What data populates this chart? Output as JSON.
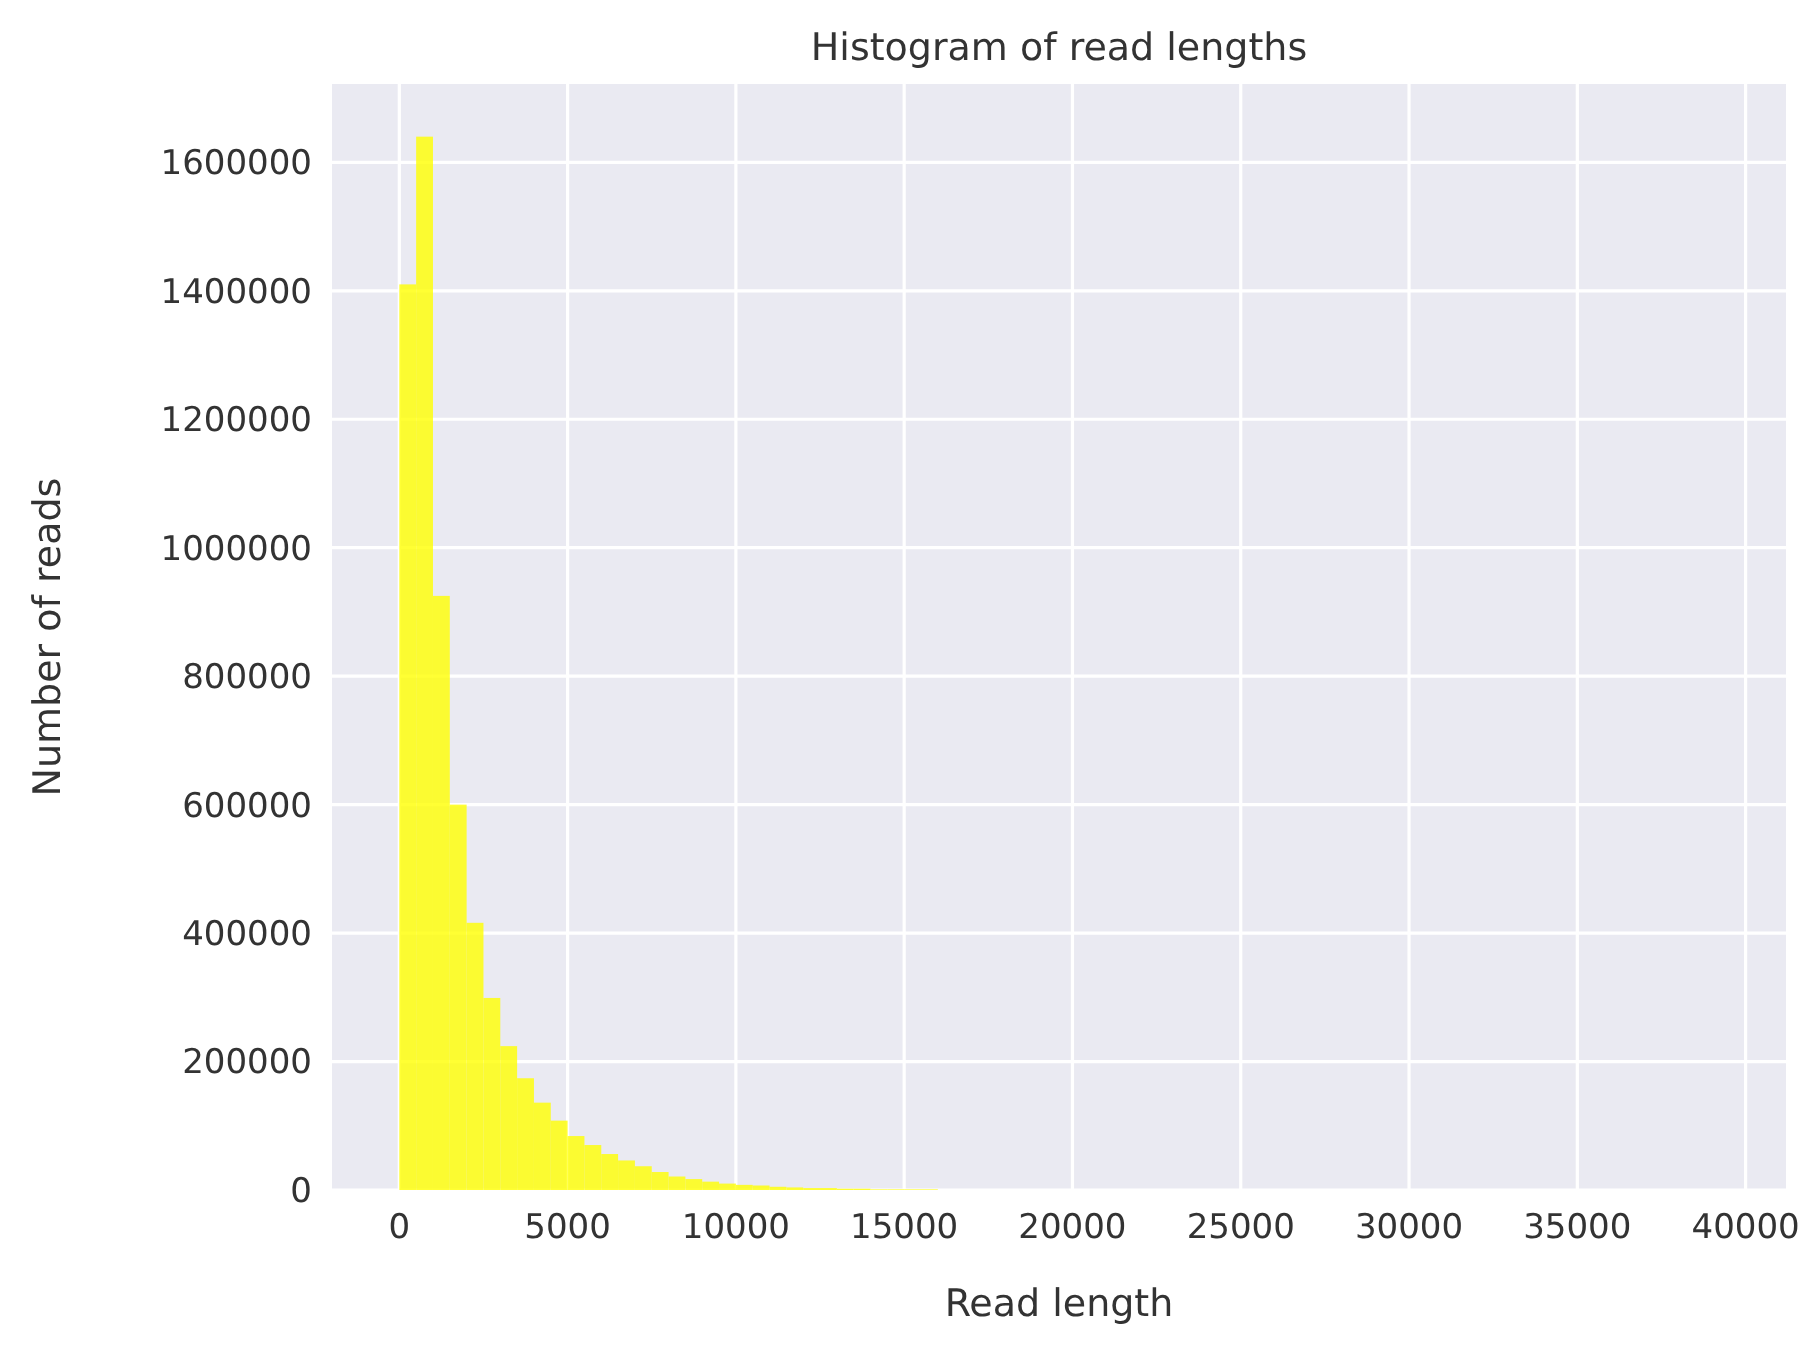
{
  "chart_data": {
    "type": "histogram",
    "title": "Histogram of read lengths",
    "xlabel": "Read length",
    "ylabel": "Number of reads",
    "bins": [
      0,
      500,
      1000,
      1500,
      2000,
      2500,
      3000,
      3500,
      4000,
      4500,
      5000,
      5500,
      6000,
      6500,
      7000,
      7500,
      8000,
      8500,
      9000,
      9500,
      10000,
      10500,
      11000,
      11500,
      12000,
      12500,
      13000,
      13500,
      14000,
      14500,
      15000,
      15500,
      16000
    ],
    "values": [
      1410000,
      1640000,
      925000,
      600000,
      416000,
      299000,
      224000,
      174000,
      136000,
      108000,
      84000,
      70000,
      56000,
      46000,
      37000,
      28000,
      21000,
      17000,
      13000,
      10000,
      8000,
      7000,
      5000,
      4000,
      3000,
      3000,
      2000,
      2000,
      1000,
      1000,
      1000,
      1000
    ],
    "color": "#ffff00",
    "xlim": [
      -2000,
      41200
    ],
    "xticks": [
      0,
      5000,
      10000,
      15000,
      20000,
      25000,
      30000,
      35000,
      40000
    ],
    "ylim": [
      0,
      1722000
    ],
    "yticks": [
      0,
      200000,
      400000,
      600000,
      800000,
      1000000,
      1200000,
      1400000,
      1600000
    ],
    "grid": true
  }
}
